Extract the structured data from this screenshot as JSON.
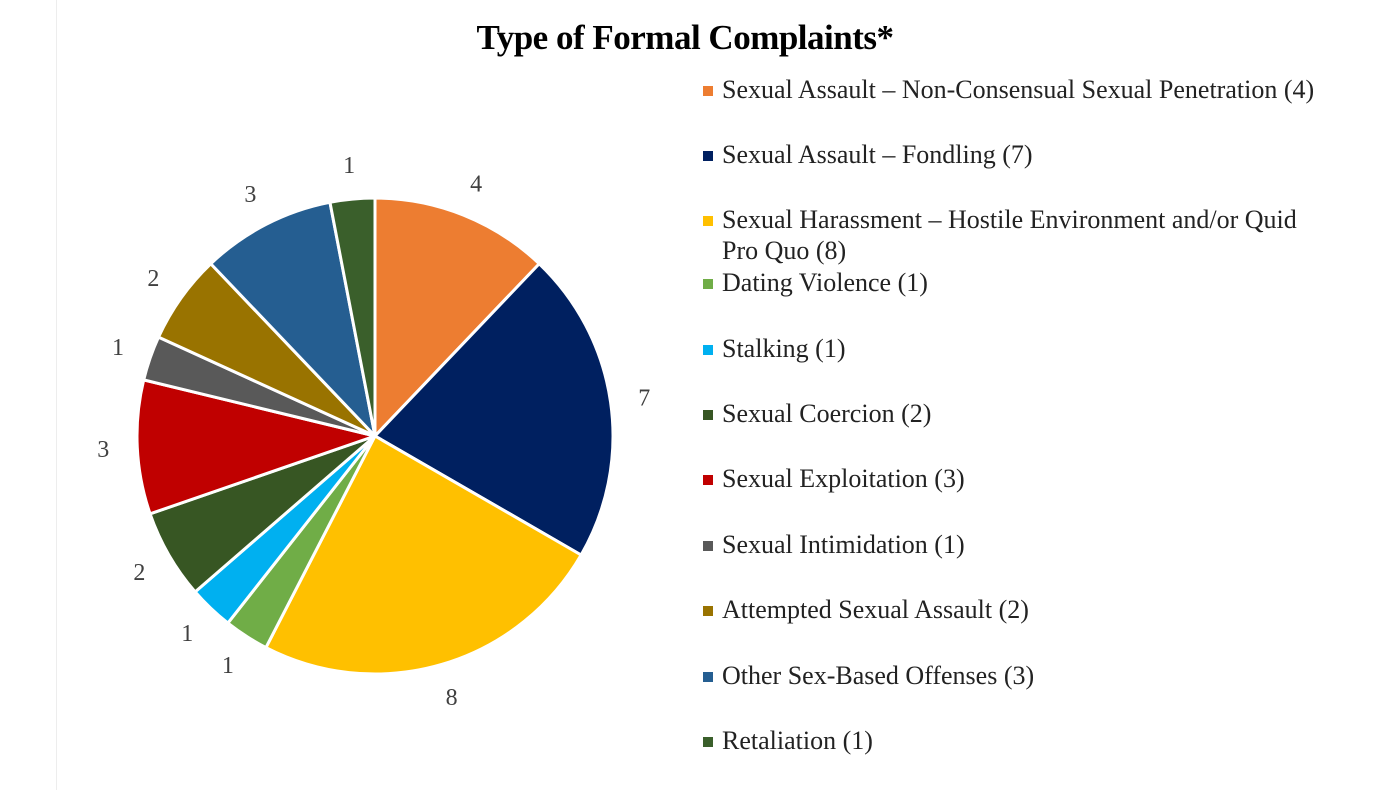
{
  "chart_data": {
    "type": "pie",
    "title": "Type of Formal Complaints*",
    "slices": [
      {
        "label": "Sexual Assault – Non-Consensual Sexual Penetration (4)",
        "value": 4,
        "color": "#ED7D31"
      },
      {
        "label": "Sexual Assault – Fondling (7)",
        "value": 7,
        "color": "#002060"
      },
      {
        "label": "Sexual Harassment – Hostile Environment and/or Quid Pro Quo (8)",
        "value": 8,
        "color": "#FFC000"
      },
      {
        "label": "Dating Violence (1)",
        "value": 1,
        "color": "#70AD47"
      },
      {
        "label": "Stalking (1)",
        "value": 1,
        "color": "#00B0F0"
      },
      {
        "label": "Sexual Coercion (2)",
        "value": 2,
        "color": "#375623"
      },
      {
        "label": "Sexual Exploitation (3)",
        "value": 3,
        "color": "#C00000"
      },
      {
        "label": "Sexual Intimidation (1)",
        "value": 1,
        "color": "#595959"
      },
      {
        "label": "Attempted Sexual Assault (2)",
        "value": 2,
        "color": "#997300"
      },
      {
        "label": "Other Sex-Based Offenses (3)",
        "value": 3,
        "color": "#255E91"
      },
      {
        "label": "Retaliation (1)",
        "value": 1,
        "color": "#3A5F2B"
      }
    ],
    "legend_position": "right",
    "data_labels": true
  }
}
